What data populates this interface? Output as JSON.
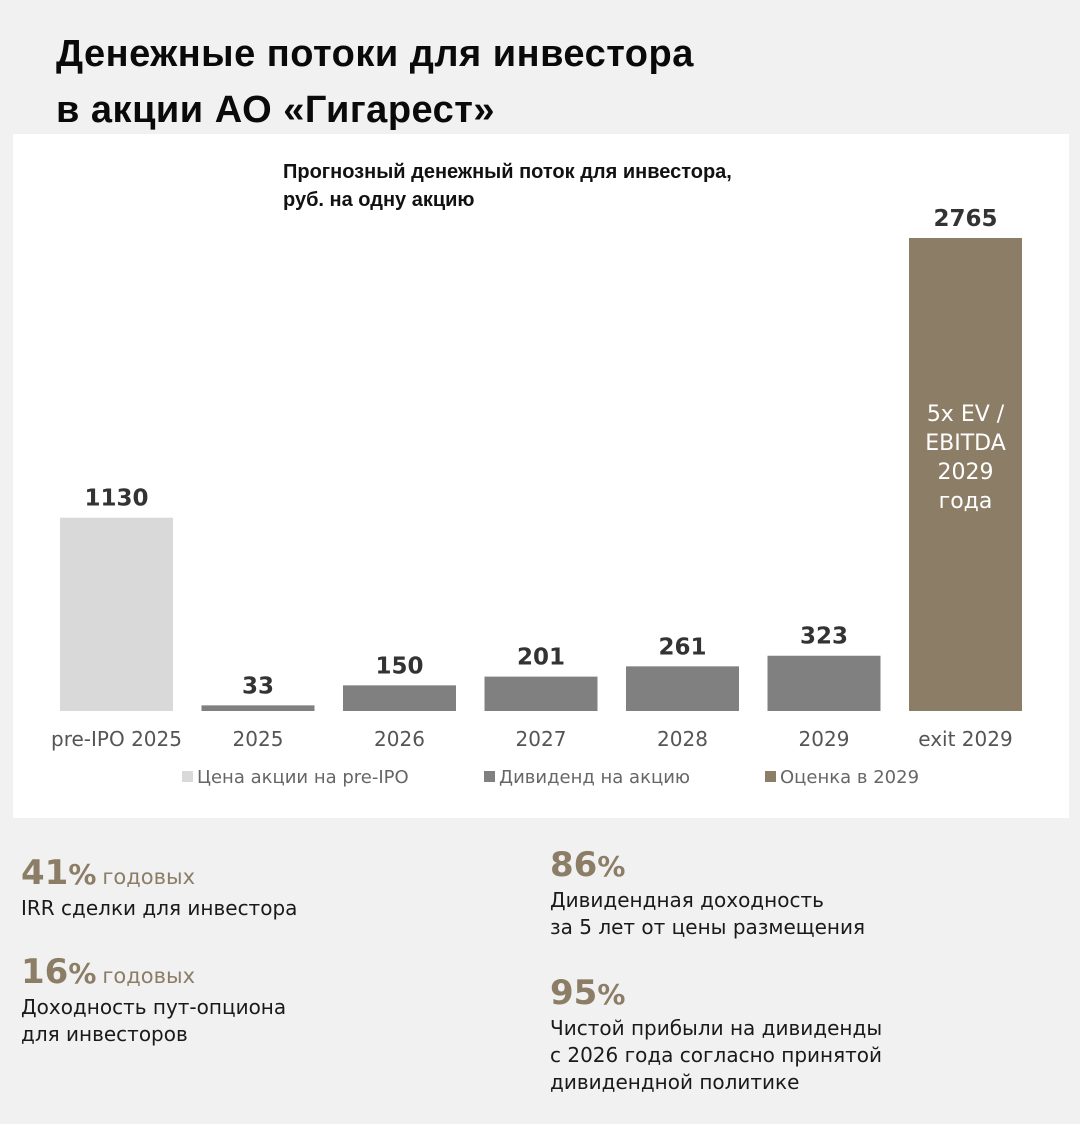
{
  "header": {
    "title_line1": "Денежные потоки для инвестора",
    "title_line2": "в акции АО «Гигарест»"
  },
  "chart_data": {
    "type": "bar",
    "title_line1": "Прогнозный денежный поток для инвестора,",
    "title_line2": "руб. на одну акцию",
    "categories": [
      "pre-IPO 2025",
      "2025",
      "2026",
      "2027",
      "2028",
      "2029",
      "exit 2029"
    ],
    "values": [
      1130,
      33,
      150,
      201,
      261,
      323,
      2765
    ],
    "series_of_bar": [
      "price",
      "dividend",
      "dividend",
      "dividend",
      "dividend",
      "dividend",
      "valuation"
    ],
    "series": [
      {
        "key": "price",
        "name": "Цена акции на pre-IPO",
        "color": "#d9d9d9"
      },
      {
        "key": "dividend",
        "name": "Дивиденд на акцию",
        "color": "#808080"
      },
      {
        "key": "valuation",
        "name": "Оценка в 2029",
        "color": "#8c7e66"
      }
    ],
    "bar_annotation": {
      "index": 6,
      "lines": [
        "5x EV /",
        "EBITDA",
        "2029",
        "года"
      ]
    },
    "ylim": [
      0,
      2765
    ],
    "grid": false,
    "legend_position": "bottom"
  },
  "stats": [
    {
      "value": "41",
      "unit": "%",
      "suffix": "годовых",
      "desc": [
        "IRR сделки для инвестора"
      ]
    },
    {
      "value": "16",
      "unit": "%",
      "suffix": "годовых",
      "desc": [
        "Доходность пут-опциона",
        "для инвесторов"
      ]
    },
    {
      "value": "86",
      "unit": "%",
      "suffix": "",
      "desc": [
        "Дивидендная доходность",
        "за 5 лет от цены размещения"
      ]
    },
    {
      "value": "95",
      "unit": "%",
      "suffix": "",
      "desc": [
        "Чистой прибыли на дивиденды",
        "с 2026 года согласно принятой",
        "дивидендной политике"
      ]
    }
  ]
}
